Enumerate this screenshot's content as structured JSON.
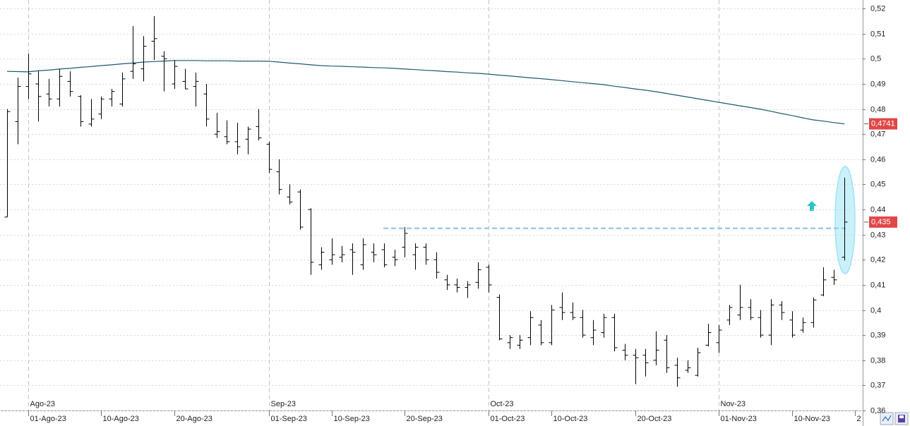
{
  "chart_data": {
    "type": "ohlc",
    "categories": [
      null,
      null,
      "01-Ago-23",
      null,
      null,
      null,
      null,
      null,
      null,
      "10-Ago-23",
      null,
      null,
      null,
      null,
      null,
      null,
      "20-Ago-23",
      null,
      null,
      null,
      null,
      null,
      null,
      null,
      null,
      "01-Sep-23",
      null,
      null,
      null,
      null,
      null,
      "10-Sep-23",
      null,
      null,
      null,
      null,
      null,
      null,
      "20-Sep-23",
      null,
      null,
      null,
      null,
      null,
      null,
      null,
      "01-Oct-23",
      null,
      null,
      null,
      null,
      null,
      "10-Oct-23",
      null,
      null,
      null,
      null,
      null,
      null,
      null,
      "20-Oct-23",
      null,
      null,
      null,
      null,
      null,
      null,
      null,
      "01-Nov-23",
      null,
      null,
      null,
      null,
      null,
      null,
      "10-Nov-23",
      null,
      null,
      null,
      null,
      null,
      "2"
    ],
    "month_labels": [
      null,
      null,
      "Ago-23",
      null,
      null,
      null,
      null,
      null,
      null,
      null,
      null,
      null,
      null,
      null,
      null,
      null,
      null,
      null,
      null,
      null,
      null,
      null,
      null,
      null,
      null,
      "Sep-23",
      null,
      null,
      null,
      null,
      null,
      null,
      null,
      null,
      null,
      null,
      null,
      null,
      null,
      null,
      null,
      null,
      null,
      null,
      null,
      null,
      "Oct-23",
      null,
      null,
      null,
      null,
      null,
      null,
      null,
      null,
      null,
      null,
      null,
      null,
      null,
      null,
      null,
      null,
      null,
      null,
      null,
      null,
      null,
      "Nov-23",
      null,
      null,
      null,
      null,
      null,
      null,
      null,
      null,
      null,
      null,
      null,
      null,
      null
    ],
    "ohlc": {
      "color": "#000000",
      "open": [
        0.437,
        0.475,
        0.489,
        0.49,
        0.486,
        0.484,
        0.491,
        0.485,
        0.474,
        0.478,
        0.484,
        0.482,
        0.495,
        0.496,
        0.507,
        0.501,
        0.49,
        0.491,
        0.489,
        0.486,
        0.47,
        0.469,
        0.467,
        0.468,
        0.473,
        0.466,
        0.455,
        0.445,
        0.447,
        0.44,
        0.418,
        0.42,
        0.421,
        0.424,
        0.418,
        0.423,
        0.424,
        0.421,
        0.425,
        0.422,
        0.425,
        0.42,
        0.412,
        0.41,
        0.409,
        0.411,
        0.417,
        0.405,
        0.387,
        0.386,
        0.389,
        0.394,
        0.387,
        0.401,
        0.399,
        0.397,
        0.389,
        0.391,
        0.397,
        0.384,
        0.382,
        0.382,
        0.38,
        0.388,
        0.378,
        0.376,
        0.374,
        0.386,
        0.387,
        0.396,
        0.398,
        0.401,
        0.397,
        0.39,
        0.402,
        0.396,
        0.392,
        0.395,
        0.406,
        0.413,
        0.421,
        null
      ],
      "high": [
        0.48,
        0.4925,
        0.502,
        0.495,
        0.492,
        0.496,
        0.495,
        0.4855,
        0.484,
        0.485,
        0.488,
        0.4945,
        0.513,
        0.509,
        0.517,
        0.503,
        0.4995,
        0.496,
        0.4945,
        0.49,
        0.4785,
        0.4755,
        0.4745,
        0.473,
        0.48,
        0.467,
        0.46,
        0.45,
        0.448,
        0.4405,
        0.425,
        0.4285,
        0.4255,
        0.4265,
        0.4285,
        0.4265,
        0.4265,
        0.424,
        0.433,
        0.4265,
        0.4265,
        0.423,
        0.414,
        0.4125,
        0.4115,
        0.419,
        0.418,
        0.4062,
        0.39,
        0.39,
        0.3995,
        0.396,
        0.402,
        0.407,
        0.403,
        0.4,
        0.396,
        0.3985,
        0.3985,
        0.3865,
        0.3845,
        0.3845,
        0.3915,
        0.39,
        0.381,
        0.38,
        0.385,
        0.3945,
        0.394,
        0.402,
        0.41,
        0.4043,
        0.4,
        0.4043,
        0.4035,
        0.3995,
        0.397,
        0.405,
        0.417,
        0.416,
        0.4527,
        null
      ],
      "low": [
        0.437,
        0.466,
        0.484,
        0.475,
        0.481,
        0.481,
        0.485,
        0.473,
        0.473,
        0.476,
        0.481,
        0.481,
        0.492,
        0.491,
        0.4995,
        0.487,
        0.488,
        0.488,
        0.481,
        0.473,
        0.4685,
        0.466,
        0.462,
        0.462,
        0.4675,
        0.4545,
        0.446,
        0.442,
        0.432,
        0.414,
        0.416,
        0.418,
        0.419,
        0.414,
        0.416,
        0.419,
        0.417,
        0.4175,
        0.421,
        0.416,
        0.418,
        0.4125,
        0.408,
        0.407,
        0.4048,
        0.4085,
        0.407,
        0.388,
        0.3845,
        0.3845,
        0.386,
        0.386,
        0.386,
        0.396,
        0.396,
        0.389,
        0.386,
        0.389,
        0.3835,
        0.38,
        0.3705,
        0.3735,
        0.378,
        0.375,
        0.3695,
        0.375,
        0.3735,
        0.3855,
        0.383,
        0.394,
        0.396,
        0.396,
        0.389,
        0.386,
        0.396,
        0.389,
        0.391,
        0.393,
        0.4055,
        0.41,
        0.4197,
        null
      ],
      "close": [
        0.479,
        0.489,
        0.494,
        0.485,
        0.484,
        0.493,
        0.487,
        0.475,
        0.476,
        0.484,
        0.487,
        0.492,
        0.498,
        0.505,
        0.508,
        0.5,
        0.497,
        0.488,
        0.491,
        0.476,
        0.471,
        0.467,
        0.465,
        0.472,
        0.4685,
        0.456,
        0.448,
        0.443,
        0.433,
        0.419,
        0.423,
        0.422,
        0.422,
        0.423,
        0.426,
        0.422,
        0.418,
        0.42,
        0.4305,
        0.425,
        0.42,
        0.415,
        0.41,
        0.409,
        0.41,
        0.416,
        0.41,
        0.3885,
        0.389,
        0.388,
        0.397,
        0.387,
        0.4,
        0.399,
        0.397,
        0.39,
        0.392,
        0.397,
        0.385,
        0.382,
        0.381,
        0.379,
        0.384,
        0.377,
        0.373,
        0.377,
        0.383,
        0.391,
        0.392,
        0.401,
        0.401,
        0.397,
        0.39,
        0.402,
        0.399,
        0.39,
        0.395,
        0.404,
        0.412,
        0.412,
        0.435,
        null
      ]
    },
    "moving_average": {
      "color": "#1d5a6b",
      "values": [
        0.495,
        0.4949,
        0.4948,
        0.4952,
        0.4955,
        0.4959,
        0.4962,
        0.4966,
        0.4969,
        0.4973,
        0.4976,
        0.498,
        0.4983,
        0.4987,
        0.4989,
        0.4991,
        0.4993,
        0.4993,
        0.4993,
        0.4992,
        0.4992,
        0.4992,
        0.4991,
        0.4991,
        0.4991,
        0.499,
        0.4987,
        0.4983,
        0.498,
        0.4976,
        0.4973,
        0.4971,
        0.497,
        0.4968,
        0.4967,
        0.4965,
        0.4964,
        0.4962,
        0.4959,
        0.4957,
        0.4954,
        0.4952,
        0.4949,
        0.4947,
        0.4944,
        0.4942,
        0.4939,
        0.4935,
        0.4932,
        0.4928,
        0.4924,
        0.4921,
        0.4917,
        0.4913,
        0.4909,
        0.4905,
        0.4901,
        0.4897,
        0.4891,
        0.4886,
        0.488,
        0.4875,
        0.4869,
        0.4862,
        0.4855,
        0.4848,
        0.4841,
        0.4834,
        0.4827,
        0.482,
        0.4813,
        0.4806,
        0.4799,
        0.4791,
        0.4782,
        0.4774,
        0.4765,
        0.4757,
        0.4752,
        0.4746,
        0.4741,
        null
      ]
    },
    "support_level": {
      "value": 0.4325,
      "color": "#9fcbe8"
    },
    "price_markers": [
      {
        "value": 0.4741,
        "label": "0,4741"
      },
      {
        "value": 0.435,
        "label": "0,435"
      }
    ],
    "marker_color": "#e04848",
    "ylim": [
      0.36,
      0.5234
    ],
    "yticks": [
      {
        "value": 0.36,
        "label": "0,36"
      },
      {
        "value": 0.37,
        "label": "0,37"
      },
      {
        "value": 0.38,
        "label": "0,38"
      },
      {
        "value": 0.39,
        "label": "0,39"
      },
      {
        "value": 0.4,
        "label": "0,4"
      },
      {
        "value": 0.41,
        "label": "0,41"
      },
      {
        "value": 0.42,
        "label": "0,42"
      },
      {
        "value": 0.43,
        "label": "0,43"
      },
      {
        "value": 0.44,
        "label": "0,44"
      },
      {
        "value": 0.45,
        "label": "0,45"
      },
      {
        "value": 0.46,
        "label": "0,46"
      },
      {
        "value": 0.47,
        "label": "0,47"
      },
      {
        "value": 0.48,
        "label": "0,48"
      },
      {
        "value": 0.49,
        "label": "0,49"
      },
      {
        "value": 0.5,
        "label": "0,5"
      },
      {
        "value": 0.51,
        "label": "0,51"
      },
      {
        "value": 0.52,
        "label": "0,52"
      }
    ],
    "grid": true
  }
}
